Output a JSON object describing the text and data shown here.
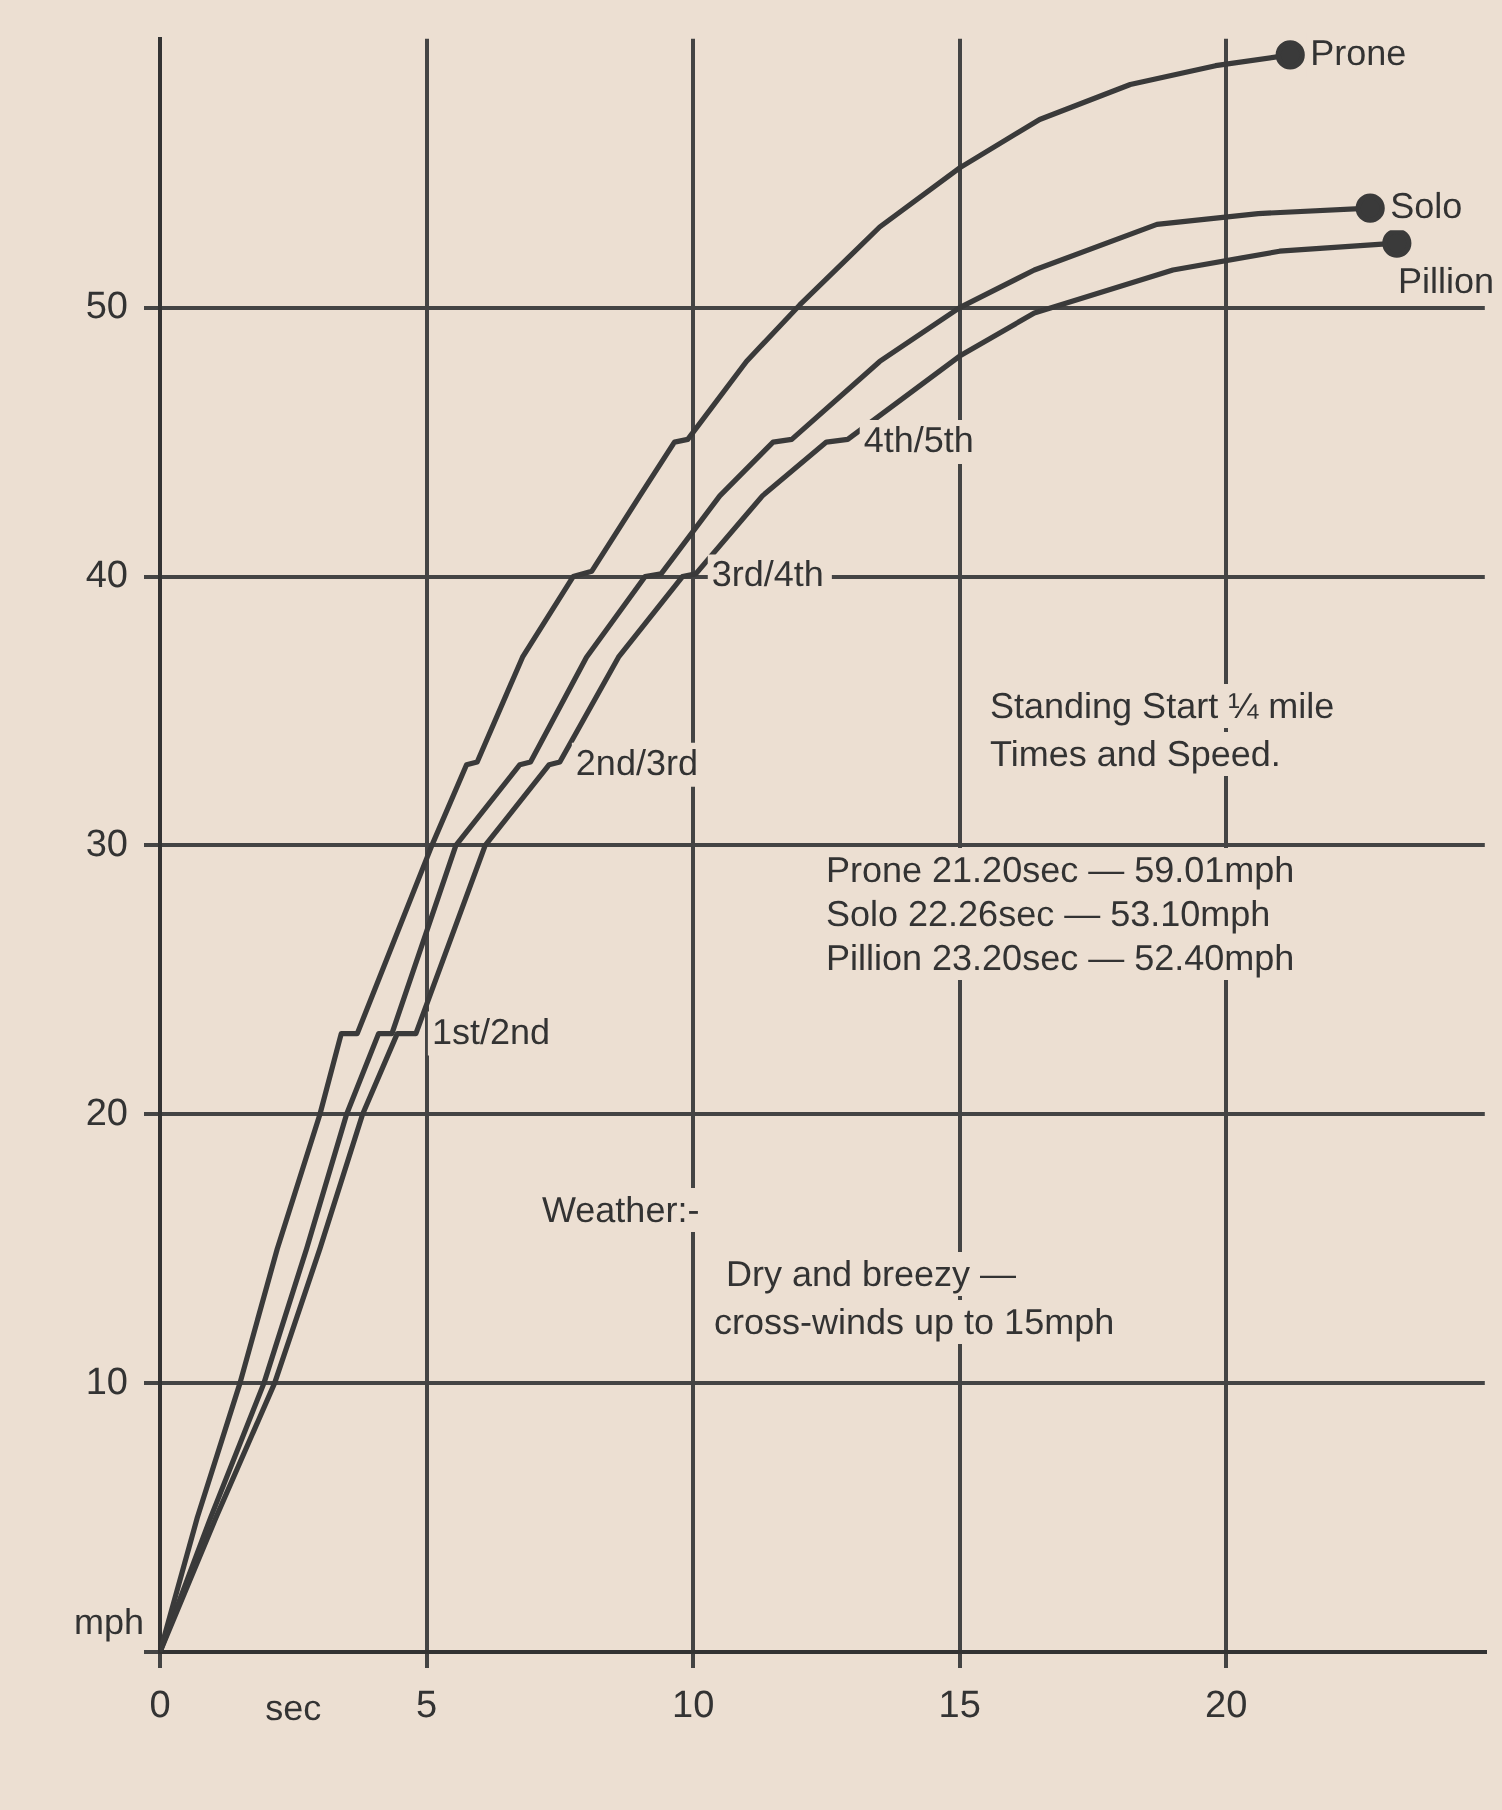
{
  "chart_data": {
    "type": "line",
    "xlabel": "sec",
    "ylabel": "mph",
    "xlim": [
      0,
      24.85
    ],
    "ylim": [
      0,
      60
    ],
    "xticks": [
      0,
      5,
      10,
      15,
      20
    ],
    "yticks": [
      {
        "value": 0,
        "label": null
      },
      10,
      20,
      30,
      40,
      50
    ],
    "grid": true,
    "legend": false,
    "series": [
      {
        "name": "Prone",
        "color": "#3a3a3a",
        "x": [
          0,
          0.7,
          1.5,
          2.2,
          3.0,
          3.4,
          3.7,
          4.4,
          5.1,
          5.75,
          5.95,
          6.8,
          7.75,
          8.1,
          9.0,
          9.65,
          9.9,
          11,
          12,
          13.5,
          15,
          16.5,
          18.2,
          19.8,
          21.2
        ],
        "values": [
          0,
          5,
          10,
          15,
          20,
          23,
          23,
          26.5,
          30,
          33,
          33.1,
          37,
          40,
          40.2,
          43,
          45,
          45.1,
          48,
          50.1,
          53,
          55.2,
          57,
          58.3,
          59,
          59.4
        ]
      },
      {
        "name": "Solo",
        "color": "#3a3a3a",
        "x": [
          0,
          0.95,
          1.95,
          2.75,
          3.5,
          4.1,
          4.35,
          5.55,
          6.75,
          6.95,
          8.0,
          9.1,
          9.4,
          10.5,
          11.5,
          11.85,
          13.5,
          15,
          16.4,
          18.7,
          20.6,
          22.7
        ],
        "values": [
          0,
          5,
          10,
          15,
          20,
          23,
          23,
          30,
          33,
          33.1,
          37,
          40,
          40.1,
          43,
          45,
          45.1,
          48,
          50,
          51.4,
          53.1,
          53.5,
          53.7
        ]
      },
      {
        "name": "Pillion",
        "color": "#3a3a3a",
        "x": [
          0,
          1.05,
          2.15,
          3.0,
          3.8,
          4.45,
          4.8,
          6.1,
          7.3,
          7.5,
          8.6,
          9.8,
          10.05,
          11.3,
          12.5,
          12.9,
          15,
          16.4,
          19.0,
          21.0,
          23.2
        ],
        "values": [
          0,
          5,
          10,
          15,
          20,
          23,
          23,
          30,
          33,
          33.1,
          37,
          40,
          40.1,
          43,
          45,
          45.1,
          48.2,
          49.8,
          51.4,
          52.1,
          52.4
        ]
      }
    ],
    "annotations": [
      {
        "text": "1st/2nd",
        "x": 4.8,
        "y": 23
      },
      {
        "text": "2nd/3rd",
        "x": 7.5,
        "y": 33
      },
      {
        "text": "3rd/4th",
        "x": 10.05,
        "y": 40
      },
      {
        "text": "4th/5th",
        "x": 12.9,
        "y": 45
      },
      "Standing Start ¼ mile",
      "Times and Speed.",
      "Prone 21.20sec — 59.01mph",
      "Solo 22.26sec — 53.10mph",
      "Pillion 23.20sec — 52.40mph",
      "Weather:-",
      "Dry and breezy —",
      "cross-winds up to 15mph"
    ]
  }
}
